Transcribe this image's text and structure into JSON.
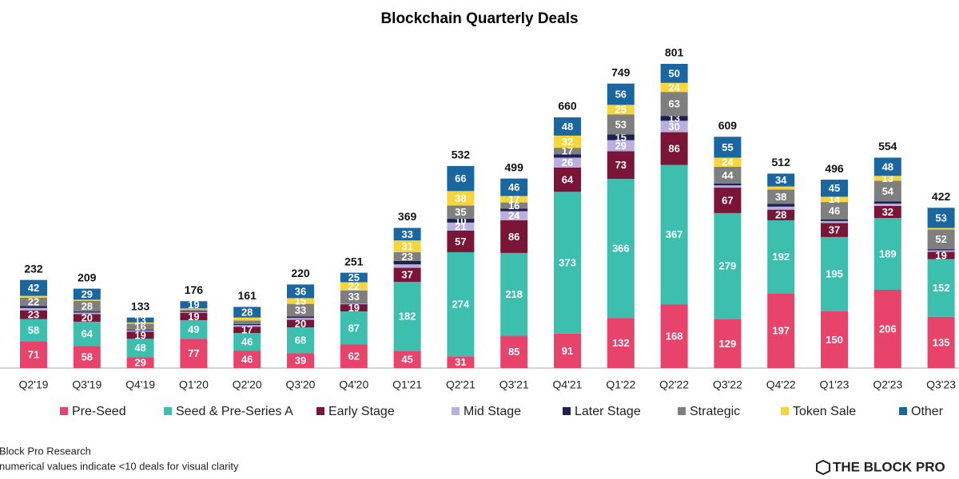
{
  "chart_data": {
    "type": "stacked_bar",
    "title": "Blockchain Quarterly Deals",
    "categories": [
      "Q2'19",
      "Q3'19",
      "Q4'19",
      "Q1'20",
      "Q2'20",
      "Q3'20",
      "Q4'20",
      "Q1'21",
      "Q2'21",
      "Q3'21",
      "Q4'21",
      "Q1'22",
      "Q2'22",
      "Q3'22",
      "Q4'22",
      "Q1'23",
      "Q2'23",
      "Q3'23"
    ],
    "totals": [
      232,
      209,
      133,
      176,
      161,
      220,
      251,
      369,
      532,
      499,
      660,
      749,
      801,
      609,
      512,
      496,
      554,
      422
    ],
    "ylim": [
      0,
      864
    ],
    "series": [
      {
        "name": "Pre-Seed",
        "color": "#e8436a",
        "values": [
          71,
          58,
          29,
          77,
          46,
          39,
          62,
          45,
          31,
          85,
          91,
          132,
          168,
          129,
          197,
          150,
          206,
          135
        ],
        "value_labels": [
          "71",
          "58",
          "29",
          "77",
          "46",
          "39",
          "62",
          "45",
          "31",
          "85",
          "91",
          "132",
          "168",
          "129",
          "197",
          "150",
          "206",
          "135"
        ]
      },
      {
        "name": "Seed & Pre-Series A",
        "color": "#3dbfb0",
        "values": [
          58,
          64,
          48,
          49,
          46,
          68,
          87,
          182,
          274,
          218,
          373,
          366,
          367,
          279,
          192,
          195,
          189,
          152
        ],
        "value_labels": [
          "58",
          "64",
          "48",
          "49",
          "46",
          "68",
          "87",
          "182",
          "274",
          "218",
          "373",
          "366",
          "367",
          "279",
          "192",
          "195",
          "189",
          "152"
        ]
      },
      {
        "name": "Early Stage",
        "color": "#7a1537",
        "values": [
          23,
          20,
          19,
          19,
          17,
          20,
          19,
          37,
          57,
          86,
          64,
          73,
          86,
          67,
          28,
          37,
          32,
          19
        ],
        "value_labels": [
          "23",
          "20",
          "19",
          "19",
          "17",
          "20",
          "19",
          "37",
          "57",
          "86",
          "64",
          "73",
          "86",
          "67",
          "28",
          "37",
          "32",
          "19"
        ]
      },
      {
        "name": "Mid Stage",
        "color": "#b9afe0",
        "values": [
          6,
          4,
          3,
          2,
          4,
          5,
          2,
          9,
          21,
          24,
          26,
          29,
          30,
          6,
          8,
          5,
          6,
          4
        ],
        "value_labels": [
          null,
          null,
          null,
          null,
          null,
          null,
          null,
          null,
          "21",
          "24",
          "26",
          "29",
          "30",
          null,
          null,
          null,
          null,
          null
        ]
      },
      {
        "name": "Later Stage",
        "color": "#1e2050",
        "values": [
          5,
          3,
          2,
          2,
          3,
          4,
          1,
          9,
          10,
          7,
          9,
          15,
          13,
          5,
          7,
          4,
          6,
          3
        ],
        "value_labels": [
          null,
          null,
          null,
          null,
          null,
          null,
          null,
          null,
          "10",
          null,
          null,
          "15",
          "13",
          null,
          null,
          null,
          null,
          null
        ]
      },
      {
        "name": "Strategic",
        "color": "#7f7f7f",
        "values": [
          22,
          28,
          16,
          5,
          9,
          33,
          33,
          23,
          35,
          16,
          17,
          53,
          63,
          44,
          38,
          46,
          54,
          52
        ],
        "value_labels": [
          "22",
          "28",
          "16",
          null,
          null,
          "33",
          "33",
          "23",
          "35",
          "16",
          "17",
          "53",
          "63",
          "44",
          "38",
          "46",
          "54",
          "52"
        ]
      },
      {
        "name": "Token Sale",
        "color": "#f5d63d",
        "values": [
          5,
          3,
          3,
          3,
          8,
          15,
          22,
          31,
          38,
          17,
          32,
          25,
          24,
          24,
          8,
          14,
          13,
          4
        ],
        "value_labels": [
          null,
          null,
          null,
          null,
          null,
          "15",
          "22",
          "31",
          "38",
          "17",
          "32",
          "25",
          "24",
          "24",
          null,
          "14",
          "13",
          null
        ]
      },
      {
        "name": "Other",
        "color": "#1a66a0",
        "values": [
          42,
          29,
          13,
          19,
          28,
          36,
          25,
          33,
          66,
          46,
          48,
          56,
          50,
          55,
          34,
          45,
          48,
          53
        ],
        "value_labels": [
          "42",
          "29",
          "13",
          "19",
          "28",
          "36",
          "25",
          "33",
          "66",
          "46",
          "48",
          "56",
          "50",
          "55",
          "34",
          "45",
          "48",
          "53"
        ]
      }
    ],
    "legend": "bottom",
    "source": "Block Pro Research",
    "note": "numerical values indicate <10 deals for visual clarity",
    "brand": "THE BLOCK PRO"
  }
}
